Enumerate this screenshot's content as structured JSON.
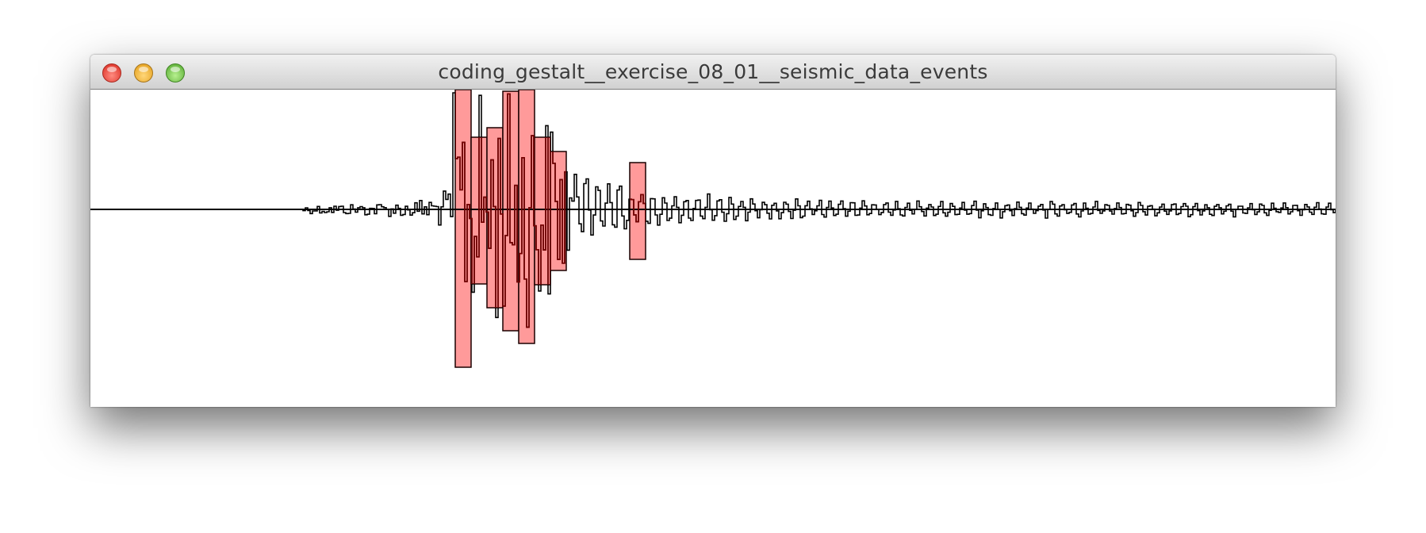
{
  "window": {
    "title": "coding_gestalt__exercise_08_01__seismic_data_events",
    "controls": {
      "close": "close-icon",
      "minimize": "minimize-icon",
      "zoom": "zoom-icon"
    }
  },
  "colors": {
    "event_fill": "#ff9a9a",
    "event_stroke": "#1a0000",
    "trace_stroke": "#000000",
    "baseline_stroke": "#000000",
    "background": "#ffffff"
  }
}
